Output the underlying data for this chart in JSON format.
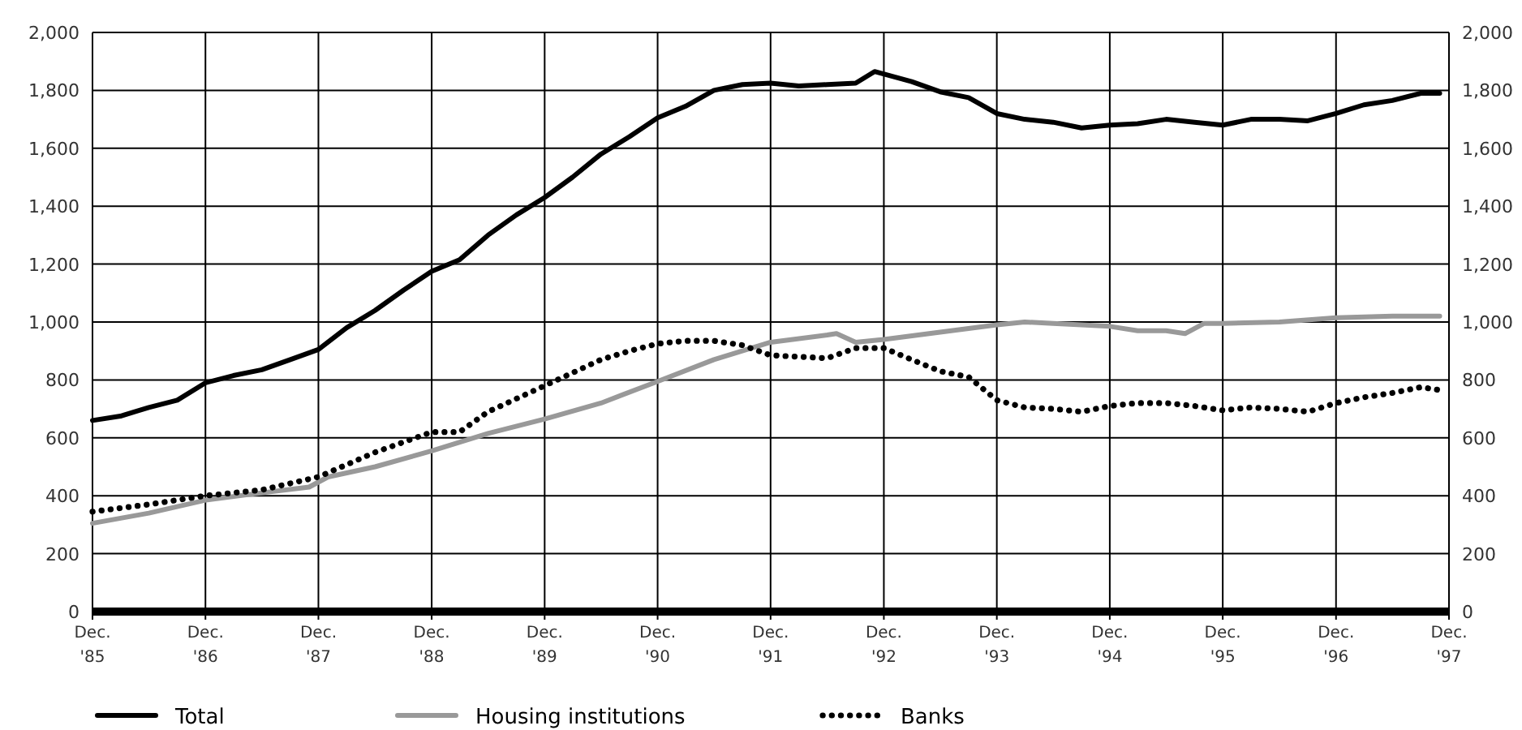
{
  "chart_data": {
    "type": "line",
    "xlim": [
      "1985-12",
      "1997-12"
    ],
    "xticks": [
      {
        "value": "1985-12",
        "label": "Dec. '85"
      },
      {
        "value": "1986-12",
        "label": "Dec. '86"
      },
      {
        "value": "1987-12",
        "label": "Dec. '87"
      },
      {
        "value": "1988-12",
        "label": "Dec. '88"
      },
      {
        "value": "1989-12",
        "label": "Dec. '89"
      },
      {
        "value": "1990-12",
        "label": "Dec. '90"
      },
      {
        "value": "1991-12",
        "label": "Dec. '91"
      },
      {
        "value": "1992-12",
        "label": "Dec. '92"
      },
      {
        "value": "1993-12",
        "label": "Dec. '93"
      },
      {
        "value": "1994-12",
        "label": "Dec. '94"
      },
      {
        "value": "1995-12",
        "label": "Dec. '95"
      },
      {
        "value": "1996-12",
        "label": "Dec. '96"
      },
      {
        "value": "1997-12",
        "label": "Dec. '97"
      }
    ],
    "ylim": [
      0,
      2000
    ],
    "yticks": [
      {
        "value": 0,
        "label": "0"
      },
      {
        "value": 200,
        "label": "200"
      },
      {
        "value": 400,
        "label": "400"
      },
      {
        "value": 600,
        "label": "600"
      },
      {
        "value": 800,
        "label": "800"
      },
      {
        "value": 1000,
        "label": "1,000"
      },
      {
        "value": 1200,
        "label": "1,200"
      },
      {
        "value": 1400,
        "label": "1,400"
      },
      {
        "value": 1600,
        "label": "1,600"
      },
      {
        "value": 1800,
        "label": "1,800"
      },
      {
        "value": 2000,
        "label": "2,000"
      }
    ],
    "y2lim": [
      0,
      2000
    ],
    "y2ticks": [
      {
        "value": 0,
        "label": "0"
      },
      {
        "value": 200,
        "label": "200"
      },
      {
        "value": 400,
        "label": "400"
      },
      {
        "value": 600,
        "label": "600"
      },
      {
        "value": 800,
        "label": "800"
      },
      {
        "value": 1000,
        "label": "1,000"
      },
      {
        "value": 1200,
        "label": "1,200"
      },
      {
        "value": 1400,
        "label": "1,400"
      },
      {
        "value": 1600,
        "label": "1,600"
      },
      {
        "value": 1800,
        "label": "1,800"
      },
      {
        "value": 2000,
        "label": "2,000"
      }
    ],
    "grid": true,
    "legend": "bottom",
    "marker": "none",
    "series": [
      {
        "name": "Total",
        "color": "#000000",
        "line_style": "solid",
        "x": [
          "1985-12",
          "1986-03",
          "1986-06",
          "1986-09",
          "1986-12",
          "1987-03",
          "1987-06",
          "1987-09",
          "1987-12",
          "1988-03",
          "1988-06",
          "1988-09",
          "1988-12",
          "1989-03",
          "1989-06",
          "1989-09",
          "1989-12",
          "1990-03",
          "1990-06",
          "1990-09",
          "1990-12",
          "1991-03",
          "1991-06",
          "1991-09",
          "1991-12",
          "1992-03",
          "1992-06",
          "1992-09",
          "1992-11",
          "1993-03",
          "1993-06",
          "1993-09",
          "1993-12",
          "1994-03",
          "1994-06",
          "1994-09",
          "1994-12",
          "1995-03",
          "1995-06",
          "1995-09",
          "1995-12",
          "1996-03",
          "1996-06",
          "1996-09",
          "1996-12",
          "1997-03",
          "1997-06",
          "1997-09",
          "1997-11"
        ],
        "values": [
          660,
          675,
          705,
          730,
          790,
          815,
          835,
          870,
          905,
          980,
          1040,
          1110,
          1175,
          1215,
          1300,
          1370,
          1430,
          1500,
          1580,
          1640,
          1705,
          1745,
          1800,
          1820,
          1825,
          1815,
          1820,
          1825,
          1865,
          1830,
          1795,
          1775,
          1720,
          1700,
          1690,
          1670,
          1680,
          1685,
          1700,
          1690,
          1680,
          1700,
          1700,
          1695,
          1720,
          1750,
          1765,
          1790,
          1790
        ]
      },
      {
        "name": "Housing institutions",
        "color": "#999999",
        "line_style": "solid",
        "x": [
          "1985-12",
          "1986-06",
          "1986-12",
          "1987-06",
          "1987-11",
          "1988-01",
          "1988-06",
          "1988-12",
          "1989-06",
          "1989-12",
          "1990-06",
          "1990-12",
          "1991-06",
          "1991-12",
          "1992-06",
          "1992-07",
          "1992-09",
          "1992-12",
          "1993-06",
          "1993-12",
          "1994-03",
          "1994-06",
          "1994-12",
          "1995-03",
          "1995-06",
          "1995-08",
          "1995-10",
          "1995-12",
          "1996-06",
          "1996-12",
          "1997-06",
          "1997-11"
        ],
        "values": [
          305,
          340,
          385,
          410,
          430,
          465,
          500,
          555,
          615,
          665,
          720,
          795,
          870,
          930,
          955,
          960,
          930,
          940,
          965,
          990,
          1000,
          995,
          985,
          970,
          970,
          960,
          995,
          995,
          1000,
          1015,
          1020,
          1020
        ]
      },
      {
        "name": "Banks",
        "color": "#000000",
        "line_style": "dotted",
        "x": [
          "1985-12",
          "1986-06",
          "1986-12",
          "1987-06",
          "1987-12",
          "1988-06",
          "1988-12",
          "1989-03",
          "1989-06",
          "1989-12",
          "1990-06",
          "1990-09",
          "1990-12",
          "1991-03",
          "1991-06",
          "1991-09",
          "1991-12",
          "1992-06",
          "1992-09",
          "1992-12",
          "1993-03",
          "1993-06",
          "1993-09",
          "1993-12",
          "1994-03",
          "1994-06",
          "1994-09",
          "1994-12",
          "1995-03",
          "1995-06",
          "1995-09",
          "1995-12",
          "1996-03",
          "1996-06",
          "1996-09",
          "1996-12",
          "1997-03",
          "1997-06",
          "1997-09",
          "1997-11"
        ],
        "values": [
          345,
          370,
          400,
          420,
          465,
          550,
          620,
          620,
          690,
          780,
          870,
          900,
          925,
          935,
          935,
          920,
          885,
          875,
          910,
          910,
          870,
          830,
          810,
          730,
          705,
          700,
          690,
          710,
          720,
          720,
          710,
          695,
          705,
          700,
          690,
          720,
          740,
          755,
          775,
          765
        ]
      }
    ]
  }
}
